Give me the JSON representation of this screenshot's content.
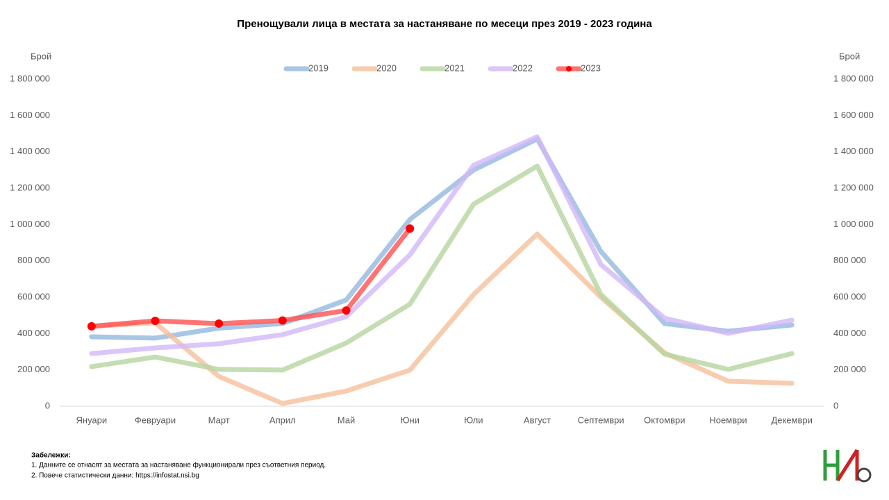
{
  "chart_data": {
    "type": "line",
    "title": "Пренощували лица в местата за настаняване  по месеци през 2019 - 2023 година",
    "ylabel": "Брой",
    "y2label": "Брой",
    "categories": [
      "Януари",
      "Февруари",
      "Март",
      "Април",
      "Май",
      "Юни",
      "Юли",
      "Август",
      "Септември",
      "Октомври",
      "Ноември",
      "Декември"
    ],
    "series": [
      {
        "name": "2019",
        "color": "#94b8de",
        "values": [
          382000,
          375000,
          430000,
          455000,
          585000,
          1028000,
          1300000,
          1471000,
          852000,
          455000,
          413000,
          447000
        ]
      },
      {
        "name": "2020",
        "color": "#f5bf9b",
        "values": [
          440000,
          459000,
          164000,
          15000,
          84000,
          199000,
          615000,
          948000,
          600000,
          294000,
          138000,
          126000
        ]
      },
      {
        "name": "2021",
        "color": "#b5d59f",
        "values": [
          218000,
          271000,
          203000,
          199000,
          348000,
          562000,
          1112000,
          1322000,
          615000,
          287000,
          203000,
          290000
        ]
      },
      {
        "name": "2022",
        "color": "#d2b8f7",
        "values": [
          290000,
          321000,
          344000,
          394000,
          493000,
          833000,
          1326000,
          1483000,
          780000,
          485000,
          401000,
          474000
        ]
      },
      {
        "name": "2023",
        "color": "#ff5050",
        "marker_color": "#ff0000",
        "markers": true,
        "values": [
          440000,
          470000,
          455000,
          472000,
          527000,
          978000,
          null,
          null,
          null,
          null,
          null,
          null
        ]
      }
    ],
    "ylim": [
      0,
      1800000
    ],
    "yticks": [
      0,
      {
        "value": 200000,
        "label": "200 000"
      },
      {
        "value": 400000,
        "label": "400 000"
      },
      {
        "value": 600000,
        "label": "600 000"
      },
      {
        "value": 800000,
        "label": "800 000"
      },
      {
        "value": 1000000,
        "label": "1 000 000"
      },
      {
        "value": 1200000,
        "label": "1 200 000"
      },
      {
        "value": 1400000,
        "label": "1 400 000"
      },
      {
        "value": 1600000,
        "label": "1 600 000"
      },
      {
        "value": 1800000,
        "label": "1 800 000"
      }
    ],
    "y2lim": [
      0,
      1800000
    ],
    "y2ticks": [
      0,
      {
        "value": 200000,
        "label": "200 000"
      },
      {
        "value": 400000,
        "label": "400 000"
      },
      {
        "value": 600000,
        "label": "600 000"
      },
      {
        "value": 800000,
        "label": "800 000"
      },
      {
        "value": 1000000,
        "label": "1 000 000"
      },
      {
        "value": 1200000,
        "label": "1 200 000"
      },
      {
        "value": 1400000,
        "label": "1 400 000"
      },
      {
        "value": 1600000,
        "label": "1 600 000"
      },
      {
        "value": 1800000,
        "label": "1 800 000"
      }
    ],
    "grid": false,
    "legend": "top"
  },
  "notes": {
    "title": "Забележки:",
    "items": [
      "1. Данните се отнасят за местата за настаняване функционирали през съответния период.",
      "2. Повече статистически данни: https://infostat.nsi.bg"
    ]
  }
}
